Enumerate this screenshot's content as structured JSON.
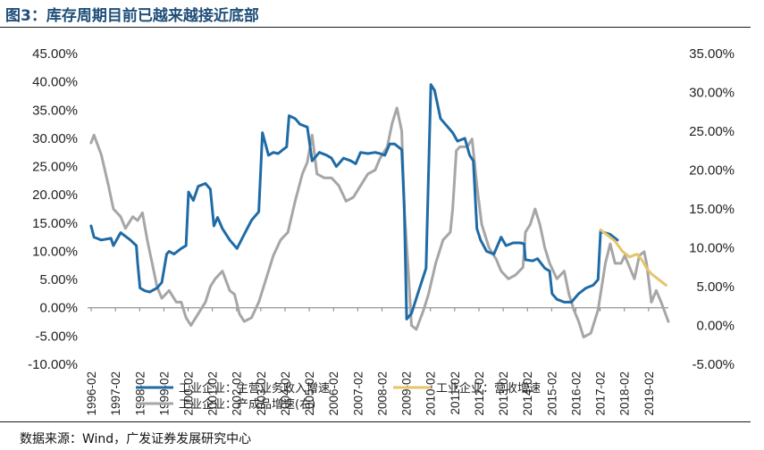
{
  "figure": {
    "title": "图3：库存周期目前已越来越接近底部",
    "source": "数据来源：Wind，广发证券发展研究中心"
  },
  "chart_data": {
    "type": "line",
    "left_axis": {
      "ylim": [
        -10,
        45
      ],
      "ticks": [
        "-10.00%",
        "-5.00%",
        "0.00%",
        "5.00%",
        "10.00%",
        "15.00%",
        "20.00%",
        "25.00%",
        "30.00%",
        "35.00%",
        "40.00%",
        "45.00%"
      ]
    },
    "right_axis": {
      "ylim": [
        -5,
        35
      ],
      "ticks": [
        "-5.00%",
        "0.00%",
        "5.00%",
        "10.00%",
        "15.00%",
        "20.00%",
        "25.00%",
        "30.00%",
        "35.00%"
      ]
    },
    "x_ticks": [
      "1996-02",
      "1997-02",
      "1998-02",
      "1999-02",
      "2000-02",
      "2001-02",
      "2002-02",
      "2003-02",
      "2004-02",
      "2005-02",
      "2006-02",
      "2007-02",
      "2008-02",
      "2009-02",
      "2010-02",
      "2011-02",
      "2012-02",
      "2013-02",
      "2014-02",
      "2015-02",
      "2016-02",
      "2017-02",
      "2018-02",
      "2019-02"
    ],
    "x_range": [
      1996.083,
      2019.9
    ],
    "legend": "bottom",
    "series": [
      {
        "name": "工业企业：主营业务收入增速",
        "axis": "left",
        "color": "#1f6ba5",
        "points": [
          [
            1996.08,
            14.5
          ],
          [
            1996.2,
            12.5
          ],
          [
            1996.5,
            12
          ],
          [
            1996.9,
            12.3
          ],
          [
            1997.0,
            11
          ],
          [
            1997.3,
            13.3
          ],
          [
            1997.7,
            12
          ],
          [
            1997.95,
            11
          ],
          [
            1998.0,
            8
          ],
          [
            1998.1,
            3.5
          ],
          [
            1998.3,
            3
          ],
          [
            1998.5,
            2.8
          ],
          [
            1998.8,
            3.5
          ],
          [
            1999.0,
            4.5
          ],
          [
            1999.2,
            9.5
          ],
          [
            1999.3,
            10
          ],
          [
            1999.5,
            9.5
          ],
          [
            1999.8,
            10.5
          ],
          [
            2000.0,
            11
          ],
          [
            2000.1,
            20.5
          ],
          [
            2000.3,
            19
          ],
          [
            2000.5,
            21.5
          ],
          [
            2000.8,
            22
          ],
          [
            2001.0,
            21
          ],
          [
            2001.15,
            14.5
          ],
          [
            2001.3,
            16
          ],
          [
            2001.5,
            14
          ],
          [
            2001.8,
            12
          ],
          [
            2002.1,
            10.5
          ],
          [
            2002.4,
            13
          ],
          [
            2002.7,
            15.5
          ],
          [
            2003.0,
            17
          ],
          [
            2003.15,
            31
          ],
          [
            2003.4,
            27
          ],
          [
            2003.6,
            27.5
          ],
          [
            2003.8,
            27.3
          ],
          [
            2004.0,
            28
          ],
          [
            2004.15,
            28.5
          ],
          [
            2004.25,
            34
          ],
          [
            2004.5,
            33.5
          ],
          [
            2004.7,
            32.5
          ],
          [
            2005.0,
            32
          ],
          [
            2005.2,
            26
          ],
          [
            2005.5,
            27.5
          ],
          [
            2005.8,
            27
          ],
          [
            2006.0,
            26.5
          ],
          [
            2006.2,
            25
          ],
          [
            2006.5,
            26.5
          ],
          [
            2006.8,
            26
          ],
          [
            2007.0,
            25.5
          ],
          [
            2007.2,
            27.5
          ],
          [
            2007.5,
            27.3
          ],
          [
            2007.8,
            27.5
          ],
          [
            2008.0,
            27.3
          ],
          [
            2008.2,
            27
          ],
          [
            2008.4,
            29
          ],
          [
            2008.6,
            29
          ],
          [
            2008.9,
            28
          ],
          [
            2009.0,
            18
          ],
          [
            2009.1,
            -2
          ],
          [
            2009.3,
            -1
          ],
          [
            2009.6,
            3
          ],
          [
            2009.9,
            7
          ],
          [
            2010.1,
            39.5
          ],
          [
            2010.25,
            38.5
          ],
          [
            2010.5,
            33.5
          ],
          [
            2010.8,
            32
          ],
          [
            2011.0,
            31
          ],
          [
            2011.2,
            29.5
          ],
          [
            2011.5,
            30
          ],
          [
            2011.7,
            27
          ],
          [
            2011.85,
            26
          ],
          [
            2012.0,
            14
          ],
          [
            2012.15,
            12
          ],
          [
            2012.4,
            10
          ],
          [
            2012.7,
            9.5
          ],
          [
            2013.0,
            12.5
          ],
          [
            2013.2,
            11
          ],
          [
            2013.5,
            11.5
          ],
          [
            2013.8,
            11.5
          ],
          [
            2013.95,
            11.3
          ],
          [
            2014.0,
            8.5
          ],
          [
            2014.3,
            8.3
          ],
          [
            2014.5,
            8.7
          ],
          [
            2014.8,
            7
          ],
          [
            2015.0,
            6.5
          ],
          [
            2015.1,
            2.5
          ],
          [
            2015.3,
            1.5
          ],
          [
            2015.6,
            1
          ],
          [
            2015.9,
            1
          ],
          [
            2016.0,
            1.5
          ],
          [
            2016.2,
            2.5
          ],
          [
            2016.5,
            3.5
          ],
          [
            2016.8,
            4
          ],
          [
            2017.0,
            5
          ],
          [
            2017.1,
            13.5
          ],
          [
            2017.5,
            13
          ],
          [
            2017.8,
            12
          ]
        ]
      },
      {
        "name": "工业企业：营收增速",
        "axis": "left",
        "color": "#e6c46a",
        "points": [
          [
            2017.1,
            13.8
          ],
          [
            2017.4,
            12.8
          ],
          [
            2017.7,
            11.8
          ],
          [
            2018.0,
            10
          ],
          [
            2018.3,
            9
          ],
          [
            2018.6,
            9.5
          ],
          [
            2018.8,
            8.5
          ],
          [
            2019.0,
            7
          ],
          [
            2019.2,
            6
          ],
          [
            2019.5,
            5
          ],
          [
            2019.8,
            4
          ]
        ]
      },
      {
        "name": "工业企业：产成品增速(右)",
        "axis": "right",
        "color": "#a6a6a6",
        "points": [
          [
            1996.08,
            23.5
          ],
          [
            1996.2,
            24.5
          ],
          [
            1996.5,
            22
          ],
          [
            1996.8,
            18
          ],
          [
            1997.0,
            15
          ],
          [
            1997.3,
            14
          ],
          [
            1997.5,
            12.5
          ],
          [
            1997.8,
            14
          ],
          [
            1998.0,
            13.5
          ],
          [
            1998.2,
            14.5
          ],
          [
            1998.4,
            11
          ],
          [
            1998.6,
            8
          ],
          [
            1998.8,
            5
          ],
          [
            1999.0,
            3.5
          ],
          [
            1999.3,
            4.5
          ],
          [
            1999.6,
            3
          ],
          [
            1999.8,
            3
          ],
          [
            2000.0,
            1
          ],
          [
            2000.2,
            0
          ],
          [
            2000.5,
            1.5
          ],
          [
            2000.8,
            3
          ],
          [
            2001.0,
            5
          ],
          [
            2001.2,
            6
          ],
          [
            2001.5,
            7
          ],
          [
            2001.8,
            4.5
          ],
          [
            2002.0,
            4
          ],
          [
            2002.2,
            1.5
          ],
          [
            2002.4,
            0.5
          ],
          [
            2002.7,
            1
          ],
          [
            2003.0,
            3
          ],
          [
            2003.3,
            6
          ],
          [
            2003.6,
            9
          ],
          [
            2003.9,
            11
          ],
          [
            2004.2,
            12
          ],
          [
            2004.5,
            16
          ],
          [
            2004.8,
            19.5
          ],
          [
            2005.0,
            21
          ],
          [
            2005.2,
            24.5
          ],
          [
            2005.4,
            19.5
          ],
          [
            2005.7,
            19
          ],
          [
            2006.0,
            19
          ],
          [
            2006.3,
            18
          ],
          [
            2006.6,
            16
          ],
          [
            2006.9,
            16.5
          ],
          [
            2007.2,
            18
          ],
          [
            2007.5,
            19.5
          ],
          [
            2007.8,
            20
          ],
          [
            2008.0,
            21.5
          ],
          [
            2008.3,
            23
          ],
          [
            2008.5,
            26
          ],
          [
            2008.7,
            28
          ],
          [
            2008.9,
            25
          ],
          [
            2009.0,
            15
          ],
          [
            2009.15,
            8
          ],
          [
            2009.3,
            0
          ],
          [
            2009.5,
            -0.5
          ],
          [
            2009.8,
            2
          ],
          [
            2010.0,
            4
          ],
          [
            2010.3,
            8
          ],
          [
            2010.6,
            11
          ],
          [
            2010.9,
            12
          ],
          [
            2011.0,
            15
          ],
          [
            2011.15,
            22.5
          ],
          [
            2011.3,
            23
          ],
          [
            2011.6,
            23
          ],
          [
            2011.8,
            24
          ],
          [
            2012.0,
            18
          ],
          [
            2012.2,
            13
          ],
          [
            2012.5,
            10
          ],
          [
            2012.8,
            8.5
          ],
          [
            2013.0,
            7
          ],
          [
            2013.3,
            6
          ],
          [
            2013.6,
            6.5
          ],
          [
            2013.9,
            7.5
          ],
          [
            2014.0,
            12
          ],
          [
            2014.2,
            13
          ],
          [
            2014.4,
            15
          ],
          [
            2014.6,
            13
          ],
          [
            2014.8,
            10
          ],
          [
            2015.0,
            8
          ],
          [
            2015.3,
            6
          ],
          [
            2015.6,
            7
          ],
          [
            2015.8,
            4
          ],
          [
            2016.0,
            2
          ],
          [
            2016.2,
            0.5
          ],
          [
            2016.4,
            -1.5
          ],
          [
            2016.7,
            -1
          ],
          [
            2017.0,
            2
          ],
          [
            2017.3,
            8
          ],
          [
            2017.5,
            10.5
          ],
          [
            2017.7,
            8
          ],
          [
            2017.95,
            8
          ],
          [
            2018.1,
            9
          ],
          [
            2018.3,
            7.5
          ],
          [
            2018.5,
            6
          ],
          [
            2018.7,
            9
          ],
          [
            2018.9,
            9.5
          ],
          [
            2019.0,
            8
          ],
          [
            2019.2,
            3
          ],
          [
            2019.4,
            4.5
          ],
          [
            2019.6,
            3
          ],
          [
            2019.9,
            0.5
          ]
        ]
      }
    ]
  }
}
